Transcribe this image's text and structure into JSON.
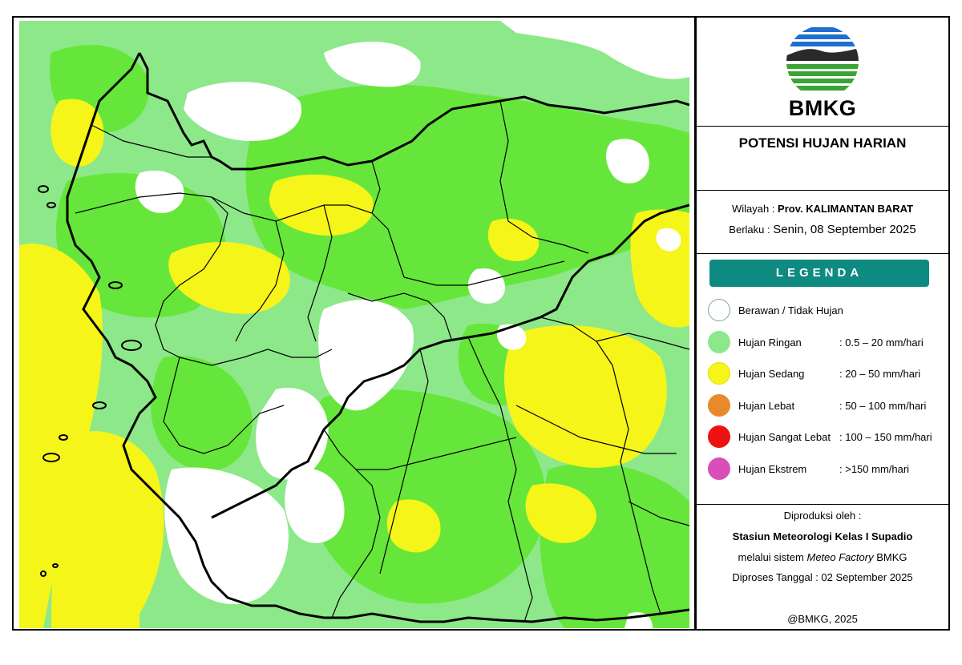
{
  "logo": {
    "text": "BMKG"
  },
  "title": "POTENSI HUJAN HARIAN",
  "info": {
    "wilayah_label": "Wilayah :",
    "wilayah_value": "Prov. KALIMANTAN BARAT",
    "berlaku_label": "Berlaku :",
    "berlaku_value": "Senin, 08 September 2025"
  },
  "legend": {
    "title": "LEGENDA",
    "items": [
      {
        "label": "Berawan / Tidak Hujan",
        "range": "",
        "color": "#ffffff"
      },
      {
        "label": "Hujan Ringan",
        "range": ": 0.5 – 20 mm/hari",
        "color": "#8de88a"
      },
      {
        "label": "Hujan Sedang",
        "range": ": 20 – 50 mm/hari",
        "color": "#f5f51a"
      },
      {
        "label": "Hujan Lebat",
        "range": ": 50 – 100 mm/hari",
        "color": "#e88a2a"
      },
      {
        "label": "Hujan Sangat Lebat",
        "range": ": 100 – 150 mm/hari",
        "color": "#ee1111"
      },
      {
        "label": "Hujan Ekstrem",
        "range": ": >150 mm/hari",
        "color": "#d94fb8"
      }
    ]
  },
  "producer": {
    "line1": "Diproduksi oleh :",
    "line2": "Stasiun Meteorologi Kelas I Supadio",
    "line3_pre": "melalui sistem",
    "line3_italic": "Meteo Factory",
    "line3_post": "BMKG",
    "line4": "Diproses Tanggal : 02 September 2025",
    "copyright": "@BMKG, 2025"
  },
  "colors": {
    "light_green": "#8de88a",
    "green": "#66e63a",
    "yellow": "#f5f51a",
    "teal": "#0f8a80"
  }
}
